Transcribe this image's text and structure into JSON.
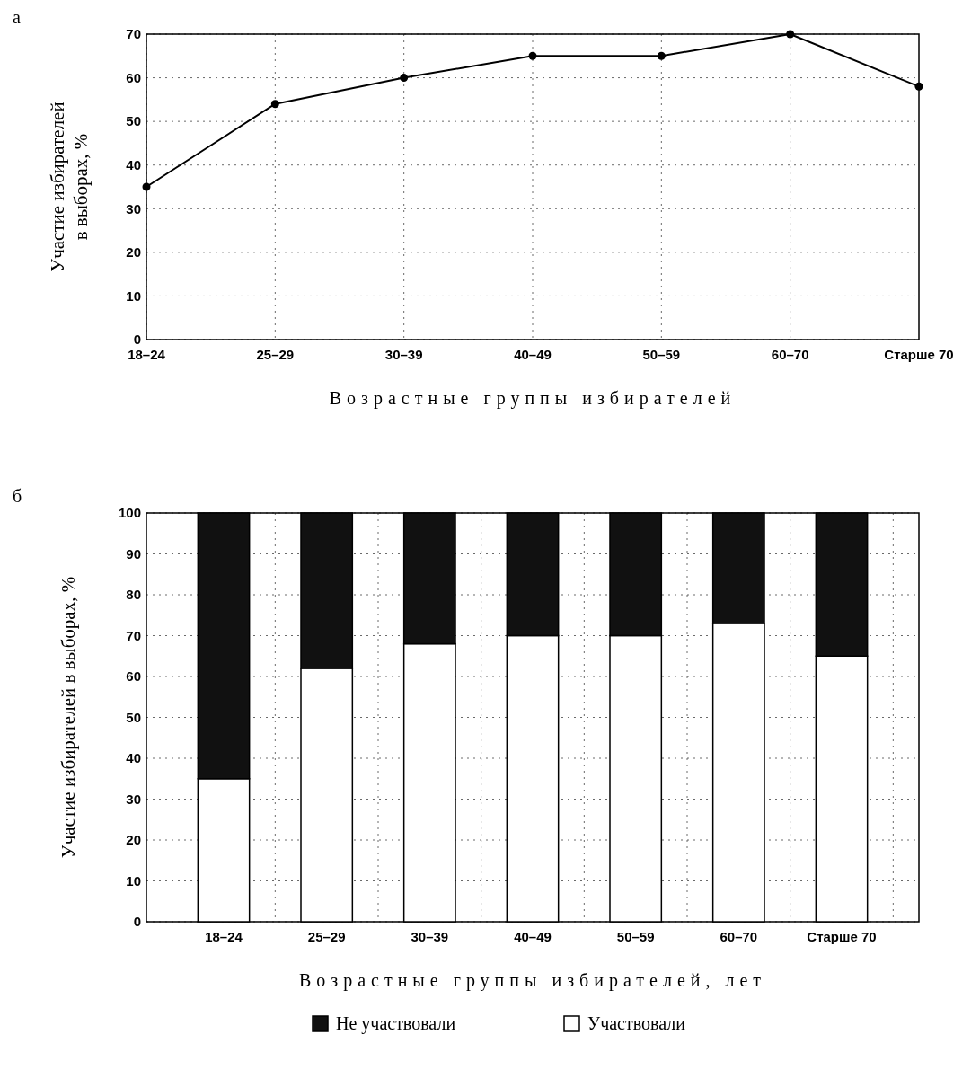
{
  "chart_data": [
    {
      "type": "line",
      "title": "а",
      "xlabel": "Возрастные группы избирателей",
      "ylabel": "Участие избирателей\nв выборах, %",
      "categories": [
        "18–24",
        "25–29",
        "30–39",
        "40–49",
        "50–59",
        "60–70",
        "Старше 70"
      ],
      "series": [
        {
          "color": "#000000",
          "values": [
            35,
            54,
            60,
            65,
            65,
            70,
            58
          ]
        }
      ],
      "ylim": [
        0,
        70
      ],
      "yticks": [
        0,
        10,
        20,
        30,
        40,
        50,
        60,
        70
      ],
      "grid": true,
      "marker": "circle",
      "line_style": "solid",
      "legend": false
    },
    {
      "type": "bar",
      "stacked": true,
      "title": "б",
      "xlabel": "Возрастные группы избирателей, лет",
      "ylabel": "Участие избирателей в выборах, %",
      "categories": [
        "18–24",
        "25–29",
        "30–39",
        "40–49",
        "50–59",
        "60–70",
        "Старше 70"
      ],
      "series": [
        {
          "name": "Участвовали",
          "color": "#ffffff",
          "values": [
            35,
            62,
            68,
            70,
            70,
            73,
            65
          ]
        },
        {
          "name": "Не участвовали",
          "color": "#111111",
          "values": [
            65,
            38,
            32,
            30,
            30,
            27,
            35
          ]
        }
      ],
      "ylim": [
        0,
        100
      ],
      "yticks": [
        0,
        10,
        20,
        30,
        40,
        50,
        60,
        70,
        80,
        90,
        100
      ],
      "grid": true,
      "legend": "bottom"
    }
  ]
}
